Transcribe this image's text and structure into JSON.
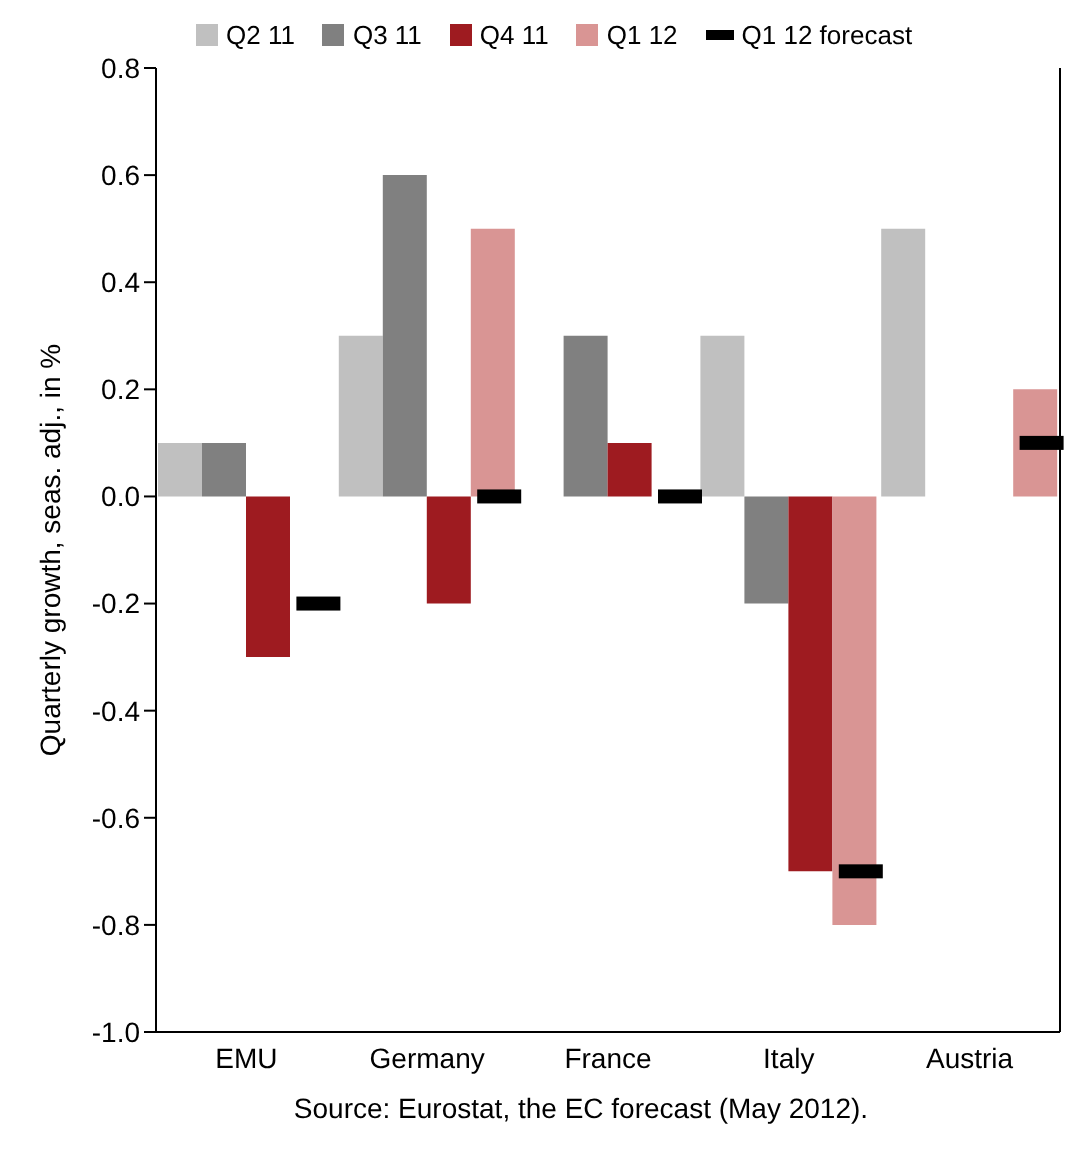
{
  "chart_data": {
    "type": "bar",
    "ylabel": "Quarterly growth, seas. adj., in %",
    "categories": [
      "EMU",
      "Germany",
      "France",
      "Italy",
      "Austria"
    ],
    "series": [
      {
        "name": "Q2 11",
        "color": "#c0c0c0",
        "values": [
          0.1,
          0.3,
          0.0,
          0.3,
          0.5
        ]
      },
      {
        "name": "Q3 11",
        "color": "#808080",
        "values": [
          0.1,
          0.6,
          0.3,
          -0.2,
          0.0
        ]
      },
      {
        "name": "Q4 11",
        "color": "#9e1b20",
        "values": [
          -0.3,
          -0.2,
          0.1,
          -0.7,
          0.0
        ]
      },
      {
        "name": "Q1 12",
        "color": "#d99594",
        "values": [
          0.0,
          0.5,
          0.0,
          -0.8,
          0.2
        ]
      },
      {
        "name": "Q1 12 forecast",
        "type": "scatter",
        "color": "#000000",
        "values": [
          -0.2,
          0.0,
          0.0,
          -0.7,
          0.1
        ]
      }
    ],
    "ylim": [
      -1.0,
      0.8
    ],
    "yticks": [
      {
        "value": -1.0,
        "label": "-1.0"
      },
      {
        "value": -0.8,
        "label": "-0.8"
      },
      {
        "value": -0.6,
        "label": "-0.6"
      },
      {
        "value": -0.4,
        "label": "-0.4"
      },
      {
        "value": -0.2,
        "label": "-0.2"
      },
      {
        "value": 0,
        "label": "0.0"
      },
      {
        "value": 0.2,
        "label": "0.2"
      },
      {
        "value": 0.4,
        "label": "0.4"
      },
      {
        "value": 0.6,
        "label": "0.6"
      },
      {
        "value": 0.8,
        "label": "0.8"
      }
    ],
    "grid": false,
    "legend": "top",
    "marker": "square",
    "annotations": [
      "Source: Eurostat, the EC forecast (May 2012)."
    ]
  }
}
